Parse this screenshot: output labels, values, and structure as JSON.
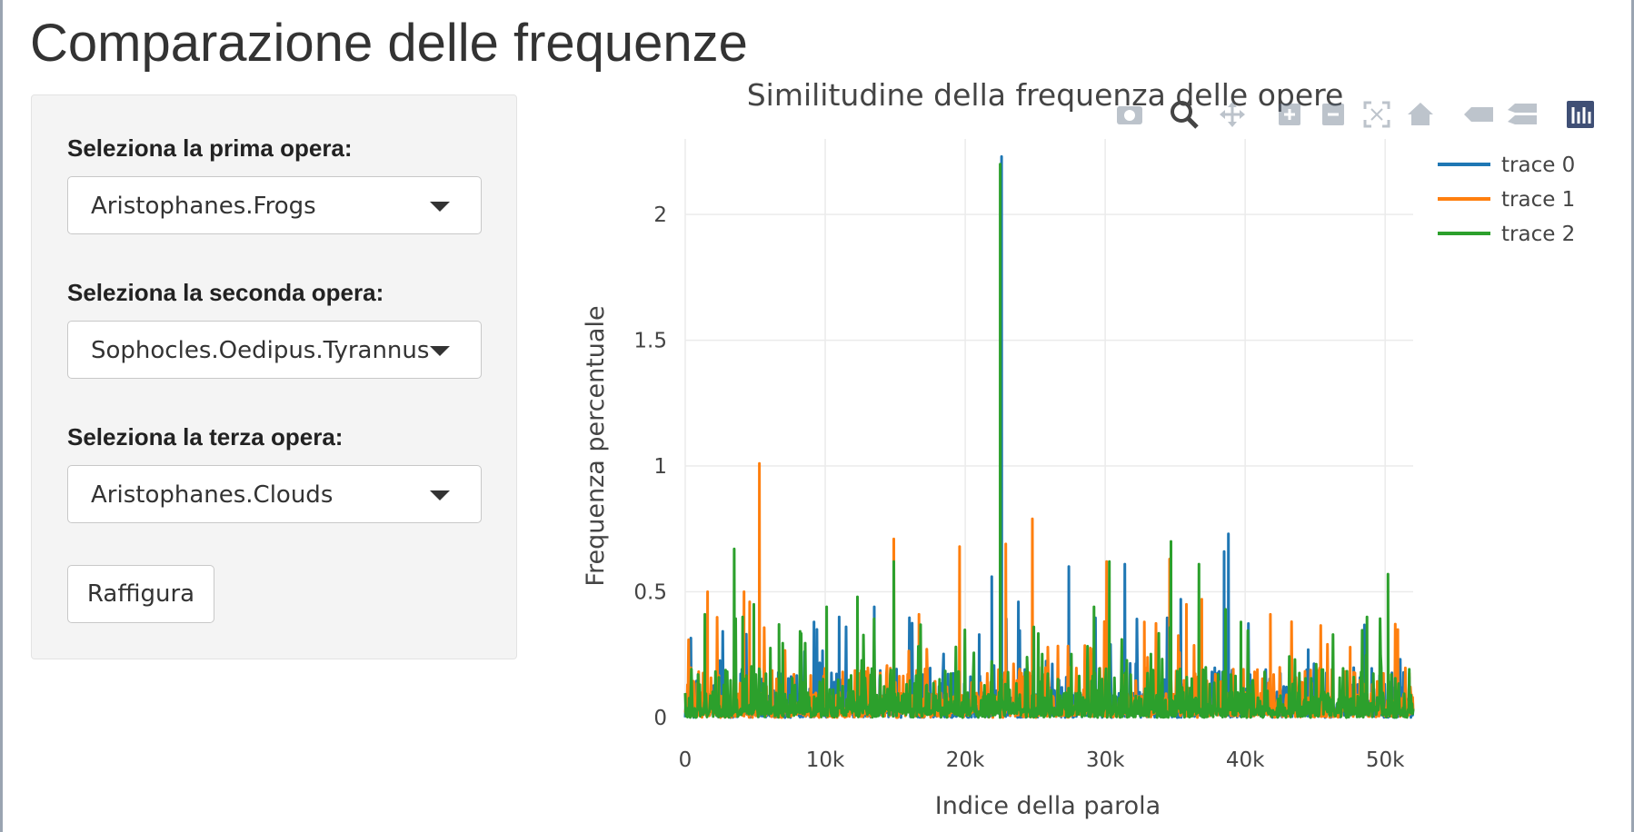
{
  "page": {
    "title": "Comparazione delle frequenze"
  },
  "sidebar": {
    "select1": {
      "label": "Seleziona la prima opera:",
      "value": "Aristophanes.Frogs"
    },
    "select2": {
      "label": "Seleziona la seconda opera:",
      "value": "Sophocles.Oedipus.Tyrannus"
    },
    "select3": {
      "label": "Seleziona la terza opera:",
      "value": "Aristophanes.Clouds"
    },
    "button_label": "Raffigura"
  },
  "modebar": {
    "icons": [
      "camera-icon",
      "zoom-icon",
      "pan-icon",
      "zoom-in-icon",
      "zoom-out-icon",
      "autoscale-icon",
      "reset-axes-icon",
      "hover-closest-icon",
      "hover-compare-icon",
      "plotly-logo-icon"
    ]
  },
  "chart_data": {
    "type": "line",
    "title": "Similitudine della frequenza delle opere",
    "xlabel": "Indice della parola",
    "ylabel": "Frequenza percentuale",
    "xlim": [
      0,
      52000
    ],
    "ylim": [
      0,
      2.3
    ],
    "x_ticks": [
      "0",
      "10k",
      "20k",
      "30k",
      "40k",
      "50k"
    ],
    "y_ticks": [
      "0",
      "0.5",
      "1",
      "1.5",
      "2"
    ],
    "grid": true,
    "legend_position": "top-right",
    "series": [
      {
        "name": "trace 0",
        "color": "#1f77b4",
        "peaks": [
          {
            "x": 300,
            "y": 0.19
          },
          {
            "x": 1400,
            "y": 0.12
          },
          {
            "x": 2500,
            "y": 0.21
          },
          {
            "x": 9200,
            "y": 0.38
          },
          {
            "x": 11000,
            "y": 0.4
          },
          {
            "x": 13500,
            "y": 0.44
          },
          {
            "x": 17500,
            "y": 0.11
          },
          {
            "x": 21000,
            "y": 0.33
          },
          {
            "x": 21900,
            "y": 0.56
          },
          {
            "x": 22600,
            "y": 2.23
          },
          {
            "x": 23800,
            "y": 0.46
          },
          {
            "x": 27400,
            "y": 0.6
          },
          {
            "x": 31400,
            "y": 0.61
          },
          {
            "x": 35400,
            "y": 0.47
          },
          {
            "x": 38500,
            "y": 0.66
          },
          {
            "x": 38800,
            "y": 0.73
          },
          {
            "x": 44500,
            "y": 0.27
          },
          {
            "x": 51000,
            "y": 0.23
          }
        ]
      },
      {
        "name": "trace 1",
        "color": "#ff7f0e",
        "peaks": [
          {
            "x": 1600,
            "y": 0.5
          },
          {
            "x": 4200,
            "y": 0.5
          },
          {
            "x": 4600,
            "y": 0.46
          },
          {
            "x": 5300,
            "y": 1.01
          },
          {
            "x": 14900,
            "y": 0.71
          },
          {
            "x": 16700,
            "y": 0.41
          },
          {
            "x": 19600,
            "y": 0.68
          },
          {
            "x": 22900,
            "y": 0.69
          },
          {
            "x": 24800,
            "y": 0.79
          },
          {
            "x": 30100,
            "y": 0.62
          },
          {
            "x": 32800,
            "y": 0.38
          },
          {
            "x": 34600,
            "y": 0.63
          },
          {
            "x": 35800,
            "y": 0.45
          },
          {
            "x": 36900,
            "y": 0.47
          },
          {
            "x": 41800,
            "y": 0.41
          },
          {
            "x": 47500,
            "y": 0.28
          },
          {
            "x": 50900,
            "y": 0.35
          }
        ]
      },
      {
        "name": "trace 2",
        "color": "#2ca02c",
        "peaks": [
          {
            "x": 1400,
            "y": 0.41
          },
          {
            "x": 2400,
            "y": 0.16
          },
          {
            "x": 3500,
            "y": 0.67
          },
          {
            "x": 4100,
            "y": 0.4
          },
          {
            "x": 4900,
            "y": 0.45
          },
          {
            "x": 6700,
            "y": 0.37
          },
          {
            "x": 10100,
            "y": 0.44
          },
          {
            "x": 12300,
            "y": 0.48
          },
          {
            "x": 14900,
            "y": 0.62
          },
          {
            "x": 22500,
            "y": 2.2
          },
          {
            "x": 24900,
            "y": 0.36
          },
          {
            "x": 29200,
            "y": 0.44
          },
          {
            "x": 30300,
            "y": 0.62
          },
          {
            "x": 34700,
            "y": 0.7
          },
          {
            "x": 36700,
            "y": 0.61
          },
          {
            "x": 38600,
            "y": 0.43
          },
          {
            "x": 39700,
            "y": 0.38
          },
          {
            "x": 48700,
            "y": 0.4
          },
          {
            "x": 50200,
            "y": 0.57
          }
        ]
      }
    ]
  }
}
